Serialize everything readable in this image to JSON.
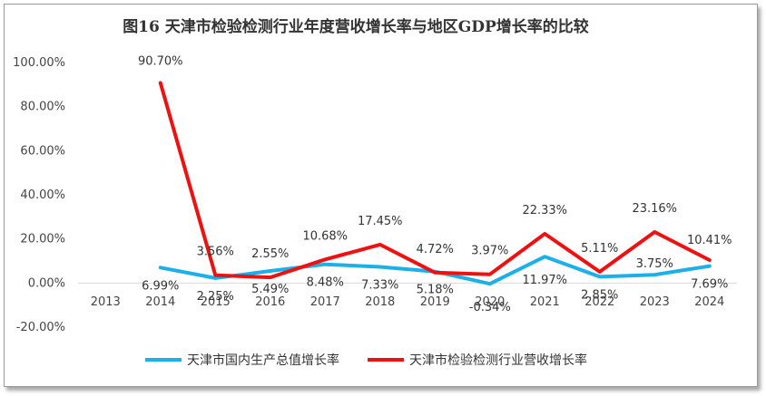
{
  "chart_data": {
    "type": "line",
    "title": "图16 天津市检验检测行业年度营收增长率与地区GDP增长率的比较",
    "categories": [
      "2013",
      "2014",
      "2015",
      "2016",
      "2017",
      "2018",
      "2019",
      "2020",
      "2021",
      "2022",
      "2023",
      "2024"
    ],
    "ylim": [
      -20,
      100
    ],
    "yticks": [
      "-20.00%",
      "0.00%",
      "20.00%",
      "40.00%",
      "60.00%",
      "80.00%",
      "100.00%"
    ],
    "ytick_values": [
      -20,
      0,
      20,
      40,
      60,
      80,
      100
    ],
    "series": [
      {
        "name": "天津市国内生产总值增长率",
        "color": "#1cb0e8",
        "values": [
          null,
          6.99,
          2.25,
          5.49,
          8.48,
          7.33,
          5.18,
          -0.34,
          11.97,
          2.85,
          3.75,
          7.69
        ],
        "labels": [
          null,
          "6.99%",
          "2.25%",
          "5.49%",
          "8.48%",
          "7.33%",
          "5.18%",
          "-0.34%",
          "11.97%",
          "2.85%",
          "3.75%",
          "7.69%"
        ]
      },
      {
        "name": "天津市检验检测行业营收增长率",
        "color": "#ee1111",
        "values": [
          null,
          90.7,
          3.56,
          2.55,
          10.68,
          17.45,
          4.72,
          3.97,
          22.33,
          5.11,
          23.16,
          10.41
        ],
        "labels": [
          null,
          "90.70%",
          "3.56%",
          "2.55%",
          "10.68%",
          "17.45%",
          "4.72%",
          "3.97%",
          "22.33%",
          "5.11%",
          "23.16%",
          "10.41%"
        ]
      }
    ],
    "legend_position": "bottom"
  }
}
